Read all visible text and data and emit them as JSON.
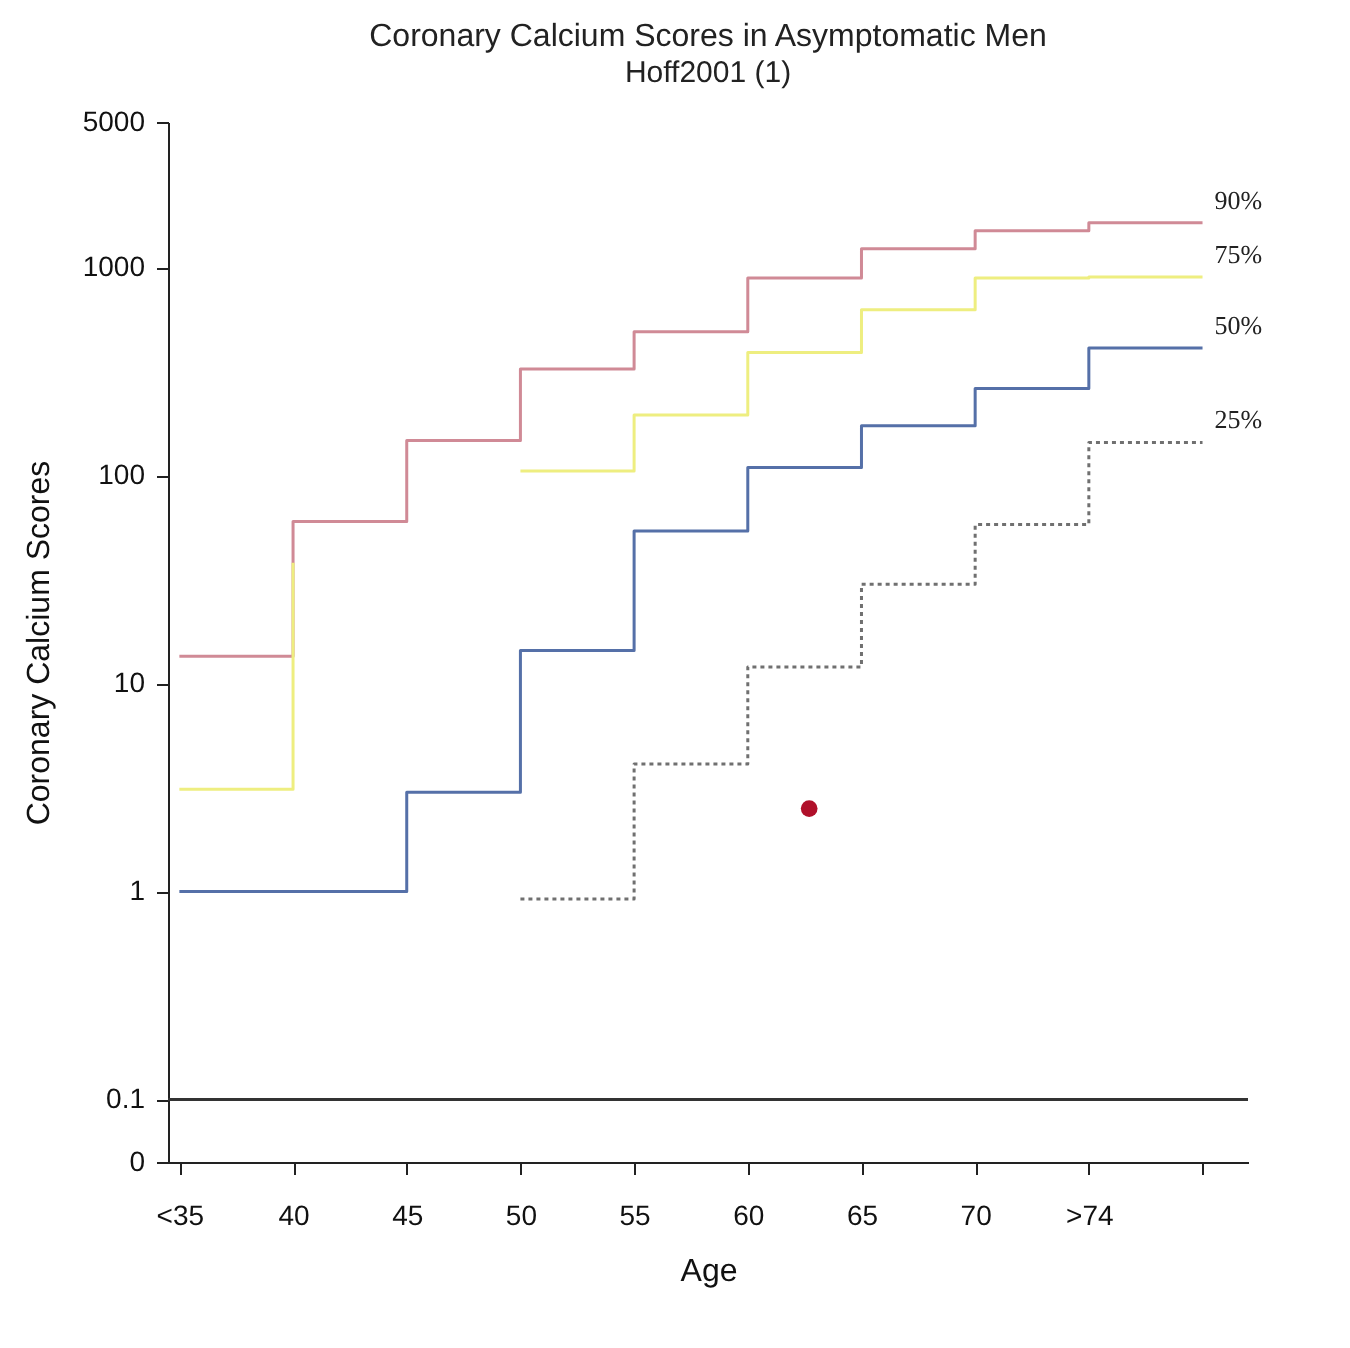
{
  "chart_data": {
    "type": "step",
    "title": "Coronary Calcium Scores in Asymptomatic Men",
    "subtitle": "Hoff2001 (1)",
    "xlabel": "Age",
    "ylabel": "Coronary Calcium Scores",
    "log": "y",
    "grid": false,
    "x": [
      35,
      40,
      45,
      50,
      55,
      60,
      65,
      70,
      75,
      80
    ],
    "xlim": [
      34.5,
      82
    ],
    "xticks": [
      {
        "value": 35,
        "label": "<35"
      },
      40,
      45,
      50,
      55,
      60,
      65,
      70,
      {
        "value": 75,
        "label": ">74"
      },
      {
        "value": 80,
        "label": null
      }
    ],
    "ylim": [
      0.05,
      5000
    ],
    "yticks": [
      {
        "value": 0.05,
        "label": "0"
      },
      0.1,
      1,
      10,
      100,
      1000,
      5000
    ],
    "series": [
      {
        "name": "90%",
        "color": "#d08a96",
        "line_style": "solid",
        "values": [
          13.5,
          60,
          147,
          325,
          490,
          890,
          1230,
          1500,
          1640,
          1640
        ]
      },
      {
        "name": "75%",
        "color": "#eeee80",
        "line_style": "solid",
        "values": [
          3.1,
          38,
          null,
          105,
          195,
          390,
          625,
          890,
          900,
          900
        ]
      },
      {
        "name": "50%",
        "color": "#5570a8",
        "line_style": "solid",
        "values": [
          1,
          1,
          3,
          14.4,
          54,
          109,
          173,
          262,
          410,
          410
        ]
      },
      {
        "name": "25%",
        "color": "#707070",
        "line_style": "dotted",
        "values": [
          null,
          null,
          null,
          0.92,
          4.1,
          12,
          30,
          58,
          144,
          144
        ]
      },
      {
        "type": "scatter",
        "color": "#b0102a",
        "marker": "circle",
        "x": [
          62.7
        ],
        "values": [
          2.5
        ]
      }
    ],
    "ref_lines": [
      {
        "axis": "y",
        "value": 0.1,
        "color": "#333333",
        "line_style": "solid"
      }
    ]
  }
}
